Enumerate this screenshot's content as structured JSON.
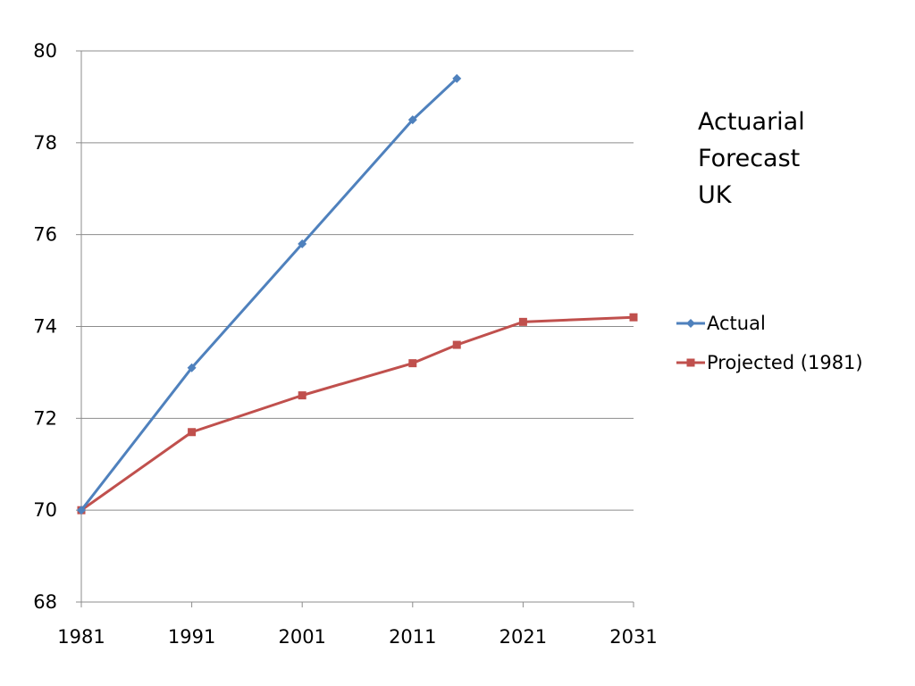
{
  "chart_data": {
    "type": "line",
    "title_lines": [
      "Actuarial",
      "Forecast",
      "UK"
    ],
    "xlabel": "",
    "ylabel": "",
    "x_ticks": [
      1981,
      1991,
      2001,
      2011,
      2021,
      2031
    ],
    "y_ticks": [
      68,
      70,
      72,
      74,
      76,
      78,
      80
    ],
    "xlim": [
      1981,
      2031
    ],
    "ylim": [
      68,
      80
    ],
    "grid": "horizontal",
    "legend_position": "right",
    "series": [
      {
        "name": "Actual",
        "color": "#4F81BD",
        "marker": "diamond",
        "x": [
          1981,
          1991,
          2001,
          2011,
          2015
        ],
        "y": [
          70.0,
          73.1,
          75.8,
          78.5,
          79.4
        ]
      },
      {
        "name": "Projected (1981)",
        "color": "#C0504D",
        "marker": "square",
        "x": [
          1981,
          1991,
          2001,
          2011,
          2015,
          2021,
          2031
        ],
        "y": [
          70.0,
          71.7,
          72.5,
          73.2,
          73.6,
          74.1,
          74.2
        ]
      }
    ]
  }
}
